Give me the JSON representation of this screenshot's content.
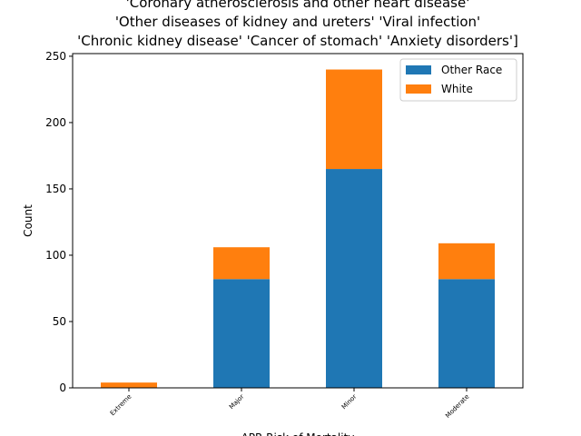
{
  "chart_data": {
    "type": "stacked_bar",
    "title": [
      "'Coronary atherosclerosis and other heart disease'",
      "'Other diseases of kidney and ureters' 'Viral infection'",
      "'Chronic kidney disease' 'Cancer of stomach' 'Anxiety disorders']"
    ],
    "x_label": "APR Risk of Mortality",
    "y_label": "Count",
    "categories": [
      "Extreme",
      "Major",
      "Minor",
      "Moderate"
    ],
    "series": [
      {
        "name": "Other Race",
        "color": "#1f77b4",
        "values": [
          0,
          82,
          165,
          82
        ]
      },
      {
        "name": "White",
        "color": "#ff7f0e",
        "values": [
          4,
          24,
          75,
          27
        ]
      }
    ],
    "ylim": [
      0,
      252
    ],
    "yticks": [
      0,
      50,
      100,
      150,
      200,
      250
    ],
    "legend": "upper right"
  }
}
